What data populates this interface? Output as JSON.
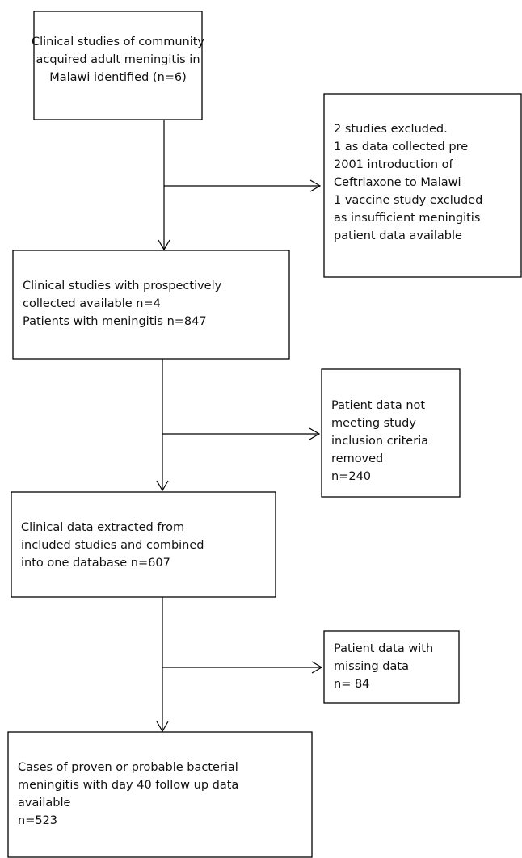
{
  "nodes": [
    {
      "lines": [
        "Clinical studies of community",
        "acquired adult meningitis in",
        "Malawi identified (n=6)"
      ]
    },
    {
      "lines": [
        "2 studies excluded.",
        "1 as data collected pre",
        "2001 introduction of",
        "Ceftriaxone to Malawi",
        "1 vaccine study excluded",
        "as insufficient meningitis",
        "patient data available"
      ]
    },
    {
      "lines": [
        "Clinical studies with prospectively",
        "collected available n=4",
        "Patients with meningitis n=847"
      ]
    },
    {
      "lines": [
        "Patient data not",
        "meeting study",
        "inclusion criteria",
        "removed",
        "n=240"
      ]
    },
    {
      "lines": [
        "Clinical data extracted from",
        "included studies and combined",
        "into one database n=607"
      ]
    },
    {
      "lines": [
        "Patient data with",
        "missing data",
        "n= 84"
      ]
    },
    {
      "lines": [
        "Cases of proven or probable bacterial",
        "meningitis with day 40 follow up data",
        "available",
        "n=523"
      ]
    }
  ]
}
